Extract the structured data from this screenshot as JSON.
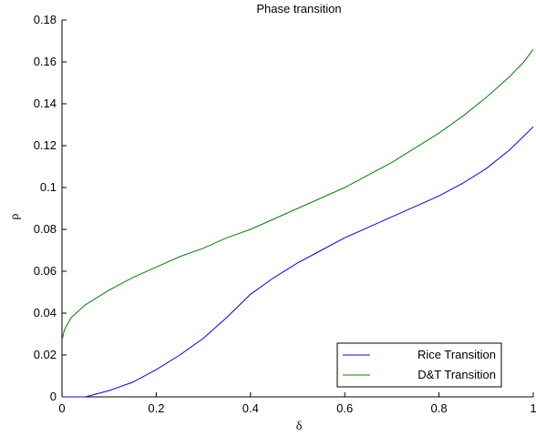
{
  "chart_data": {
    "type": "line",
    "title": "Phase transition",
    "xlabel": "δ",
    "ylabel": "ρ",
    "xlim": [
      0,
      1
    ],
    "ylim": [
      0,
      0.18
    ],
    "xticks": [
      0,
      0.2,
      0.4,
      0.6,
      0.8,
      1
    ],
    "xtick_labels": [
      "0",
      "0.2",
      "0.4",
      "0.6",
      "0.8",
      "1"
    ],
    "yticks": [
      0,
      0.02,
      0.04,
      0.06,
      0.08,
      0.1,
      0.12,
      0.14,
      0.16,
      0.18
    ],
    "ytick_labels": [
      "0",
      "0.02",
      "0.04",
      "0.06",
      "0.08",
      "0.1",
      "0.12",
      "0.14",
      "0.16",
      "0.18"
    ],
    "grid": false,
    "legend_position": "bottom-right",
    "series": [
      {
        "name": "Rice Transition",
        "color": "#0000ff",
        "x": [
          0,
          0.05,
          0.1,
          0.15,
          0.2,
          0.25,
          0.3,
          0.35,
          0.4,
          0.45,
          0.5,
          0.55,
          0.6,
          0.65,
          0.7,
          0.75,
          0.8,
          0.85,
          0.9,
          0.95,
          1.0
        ],
        "y": [
          0,
          0,
          0.003,
          0.007,
          0.013,
          0.02,
          0.028,
          0.038,
          0.049,
          0.057,
          0.064,
          0.07,
          0.076,
          0.081,
          0.086,
          0.091,
          0.096,
          0.102,
          0.109,
          0.118,
          0.129
        ]
      },
      {
        "name": "D&T Transition",
        "color": "#008000",
        "x": [
          0,
          0.005,
          0.02,
          0.05,
          0.1,
          0.15,
          0.2,
          0.25,
          0.3,
          0.35,
          0.4,
          0.45,
          0.5,
          0.55,
          0.6,
          0.65,
          0.7,
          0.75,
          0.8,
          0.85,
          0.9,
          0.95,
          0.98,
          1.0
        ],
        "y": [
          0.027,
          0.032,
          0.038,
          0.044,
          0.051,
          0.057,
          0.062,
          0.067,
          0.071,
          0.076,
          0.08,
          0.085,
          0.09,
          0.095,
          0.1,
          0.106,
          0.112,
          0.119,
          0.126,
          0.134,
          0.143,
          0.153,
          0.16,
          0.166
        ]
      }
    ]
  }
}
